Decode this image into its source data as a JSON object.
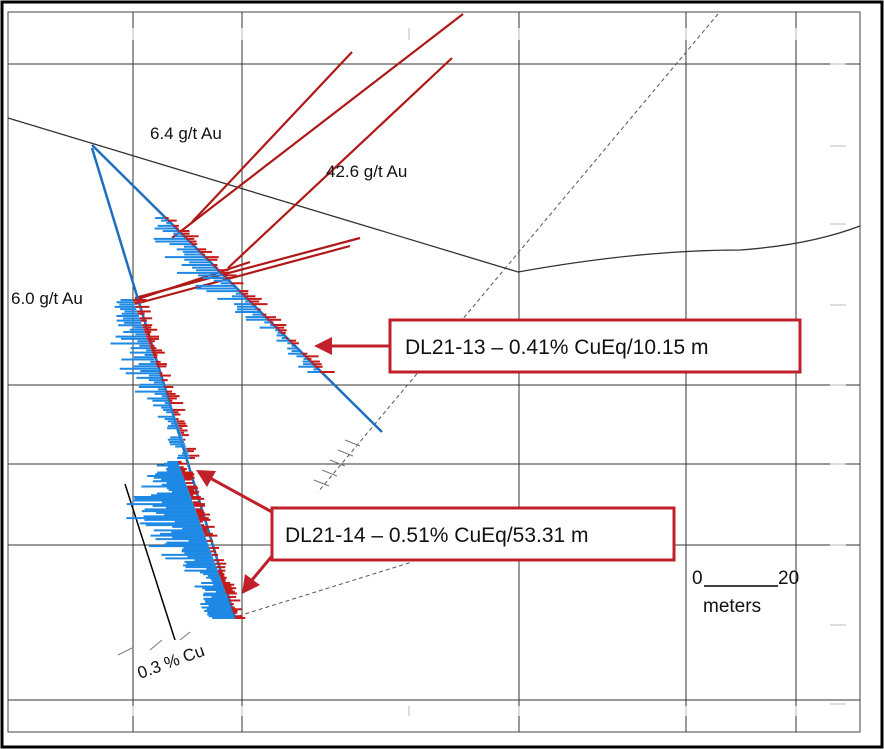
{
  "colors": {
    "frame": "#000000",
    "grid": "#333333",
    "drill_trace_blue": "#1f6fc0",
    "histogram_blue": "#1e88e5",
    "histogram_red": "#c41a1a",
    "au_line_red": "#b01818",
    "callout_red": "#c0202a",
    "topo_line": "#333333"
  },
  "grade_labels": {
    "au1": "6.4 g/t Au",
    "au2": "42.6 g/t Au",
    "au3": "6.0 g/t Au",
    "cu_threshold": "0.3 % Cu"
  },
  "callouts": {
    "dl21_13": "DL21-13 – 0.41% CuEq/10.15 m",
    "dl21_14": "DL21-14 – 0.51% CuEq/53.31 m"
  },
  "scale_bar": {
    "start": "0",
    "end": "20",
    "unit": "meters"
  }
}
